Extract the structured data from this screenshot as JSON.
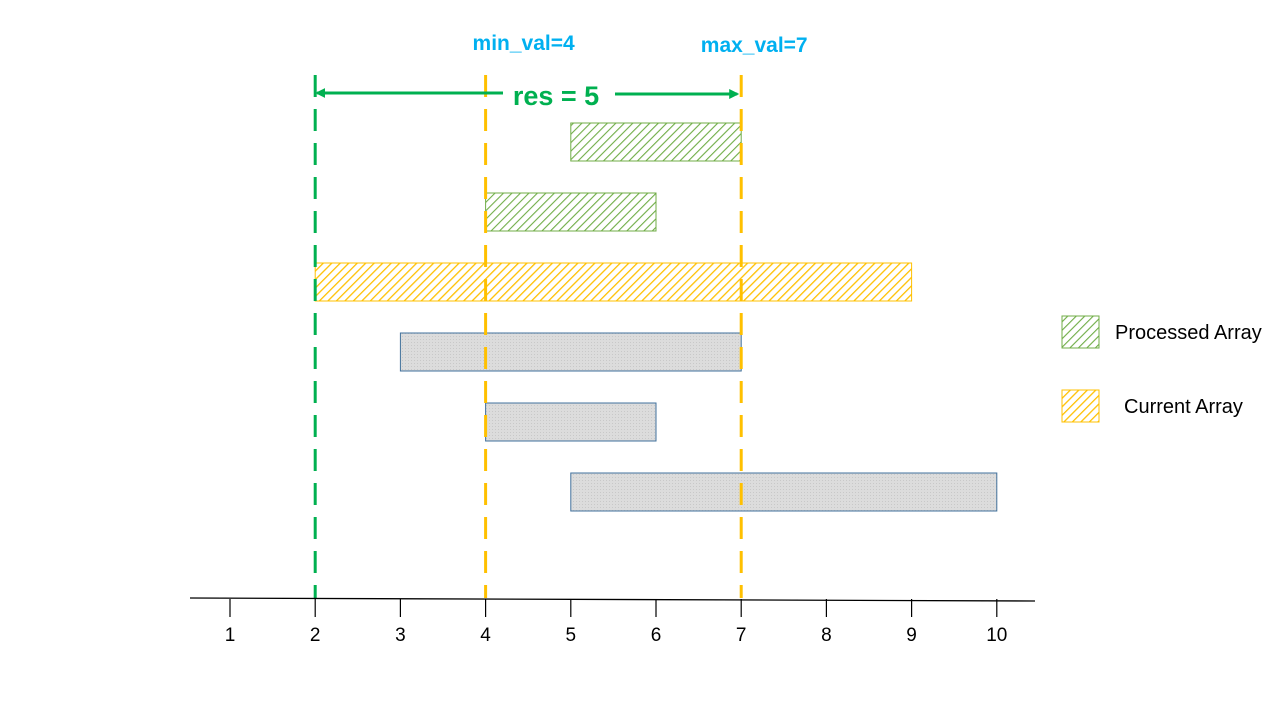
{
  "axis": {
    "ticks": [
      "1",
      "2",
      "3",
      "4",
      "5",
      "6",
      "7",
      "8",
      "9",
      "10"
    ]
  },
  "markers": {
    "min": {
      "label": "min_val=4",
      "value": 4,
      "color": "#ffc000"
    },
    "max": {
      "label": "max_val=7",
      "value": 7,
      "color": "#ffc000"
    },
    "res_line": {
      "value": 2,
      "color": "#00b050"
    }
  },
  "res": {
    "label": "res = 5",
    "from": 2,
    "to": 7,
    "color": "#00b050"
  },
  "intervals": [
    {
      "start": 5,
      "end": 7,
      "kind": "processed"
    },
    {
      "start": 4,
      "end": 6,
      "kind": "processed"
    },
    {
      "start": 2,
      "end": 9,
      "kind": "current"
    },
    {
      "start": 3,
      "end": 7,
      "kind": "pending"
    },
    {
      "start": 4,
      "end": 6,
      "kind": "pending"
    },
    {
      "start": 5,
      "end": 10,
      "kind": "pending"
    }
  ],
  "legend": [
    {
      "label": "Processed Array",
      "kind": "processed"
    },
    {
      "label": "Current Array",
      "kind": "current"
    }
  ],
  "colors": {
    "processed": "#70ad47",
    "current": "#ffc000",
    "pending_fill": "#d9d9d9",
    "pending_border": "#41719c"
  }
}
